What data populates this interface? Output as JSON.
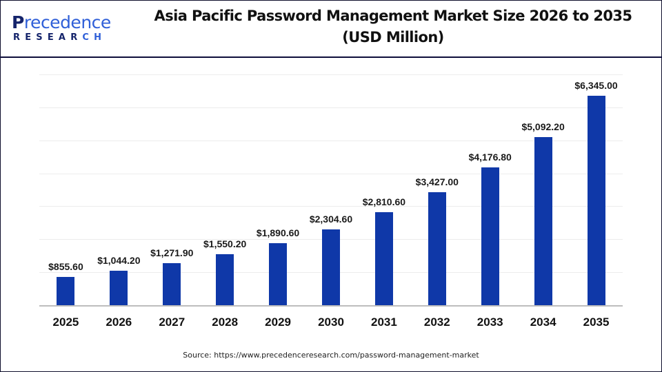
{
  "logo": {
    "word_first": "P",
    "word_rest": "recedence",
    "sub_main": "RESEAR",
    "sub_tail": "CH"
  },
  "title": {
    "line1": "Asia Pacific Password Management Market Size 2026 to 2035",
    "line2": "(USD Million)"
  },
  "source": "Source: https://www.precedenceresearch.com/password-management-market",
  "colors": {
    "bar": "#0f38a8",
    "brand_dark": "#15246b",
    "brand_light": "#2f5fd8"
  },
  "chart_data": {
    "type": "bar",
    "title": "Asia Pacific Password Management Market Size 2026 to 2035 (USD Million)",
    "xlabel": "",
    "ylabel": "USD Million",
    "categories": [
      "2025",
      "2026",
      "2027",
      "2028",
      "2029",
      "2030",
      "2031",
      "2032",
      "2033",
      "2034",
      "2035"
    ],
    "values": [
      855.6,
      1044.2,
      1271.9,
      1550.2,
      1890.6,
      2304.6,
      2810.6,
      3427.0,
      4176.8,
      5092.2,
      6345.0
    ],
    "labels": [
      "$855.60",
      "$1,044.20",
      "$1,271.90",
      "$1,550.20",
      "$1,890.60",
      "$2,304.60",
      "$2,810.60",
      "$3,427.00",
      "$4,176.80",
      "$5,092.20",
      "$6,345.00"
    ],
    "ylim": [
      0,
      7000
    ],
    "grid": true,
    "y_axis_visible": false,
    "legend": "none"
  }
}
